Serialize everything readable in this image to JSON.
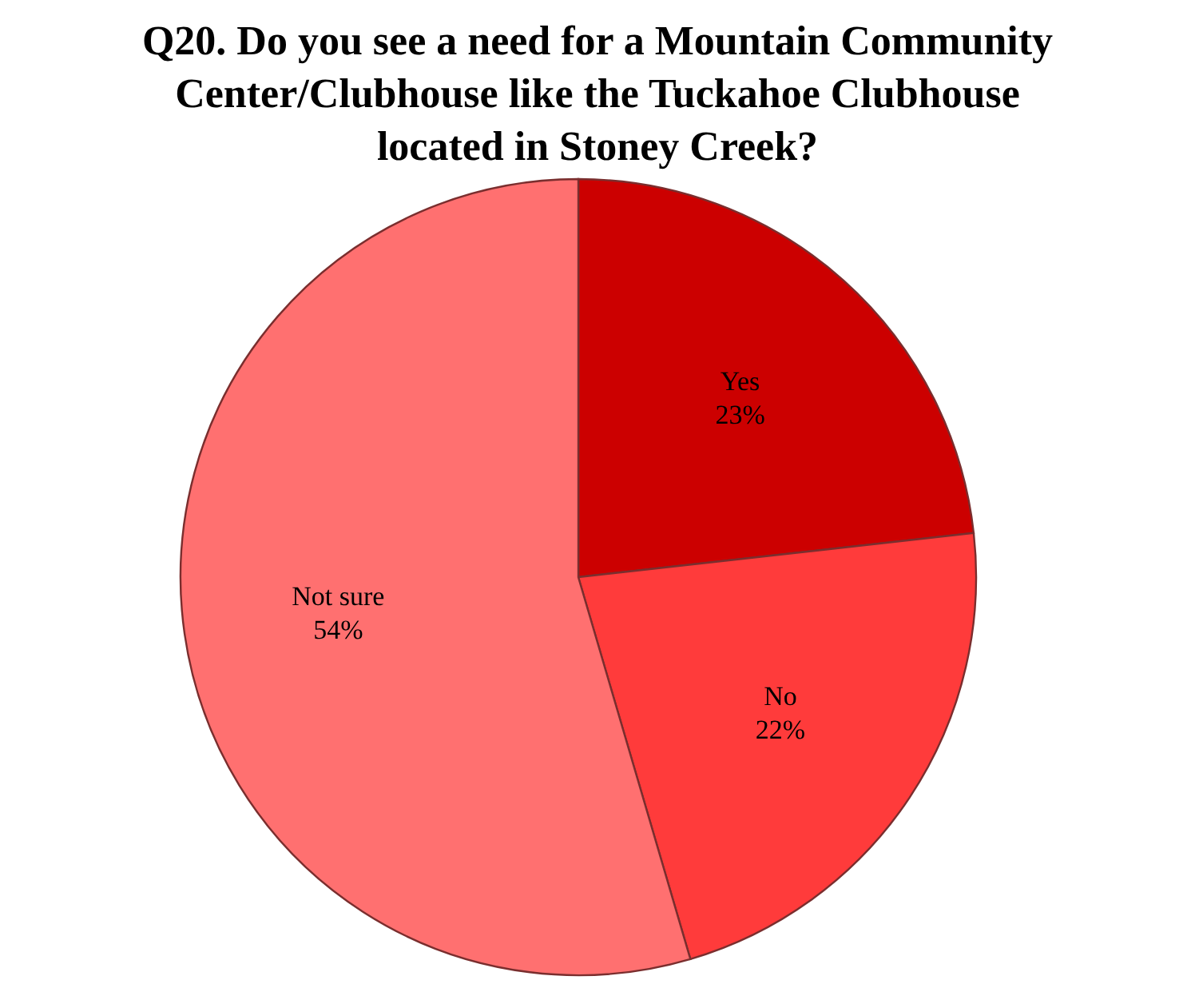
{
  "chart_data": {
    "type": "pie",
    "title": "Q20. Do you see a need for a Mountain Community Center/Clubhouse like the Tuckahoe Clubhouse located in Stoney Creek?",
    "categories": [
      "Yes",
      "No",
      "Not sure"
    ],
    "values": [
      23,
      22,
      54
    ],
    "value_labels": [
      "23%",
      "22%",
      "54%"
    ],
    "colors": [
      "#cc0000",
      "#ff3b3b",
      "#ff7070"
    ]
  }
}
